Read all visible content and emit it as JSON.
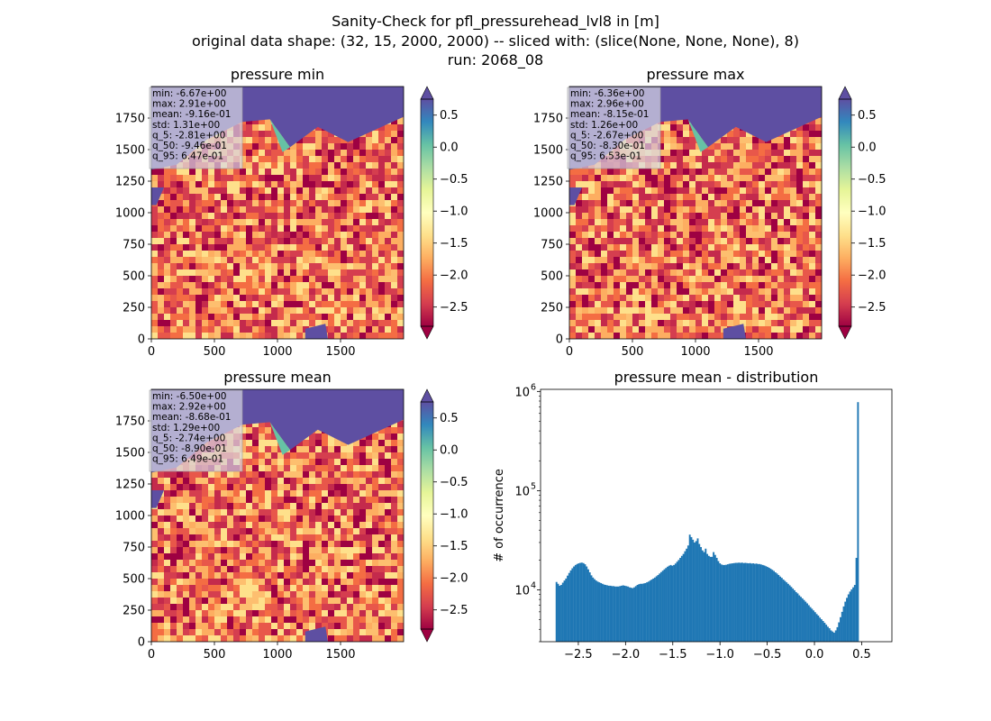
{
  "figure": {
    "title_lines": [
      "Sanity-Check for pfl_pressurehead_lvl8 in [m]",
      "original data shape: (32, 15, 2000, 2000) -- sliced with: (slice(None, None, None), 8)",
      "run: 2068_08"
    ]
  },
  "colormap": {
    "name": "Spectral",
    "stops": [
      "#9e0142",
      "#d53e4f",
      "#f46d43",
      "#fdae61",
      "#fee08b",
      "#ffffbf",
      "#e6f598",
      "#abdda4",
      "#66c2a5",
      "#3288bd",
      "#5e4fa2"
    ]
  },
  "chart_data": [
    {
      "type": "heatmap",
      "title": "pressure min",
      "xlim": [
        0,
        2000
      ],
      "ylim": [
        0,
        2000
      ],
      "xticks": [
        0,
        500,
        1000,
        1500
      ],
      "yticks": [
        0,
        250,
        500,
        750,
        1000,
        1250,
        1500,
        1750
      ],
      "colorbar": {
        "vmin": -2.8,
        "vmax": 0.75,
        "ticks": [
          0.5,
          0.0,
          -0.5,
          -1.0,
          -1.5,
          -2.0,
          -2.5
        ],
        "extend": "both"
      },
      "stats": [
        "min: -6.67e+00",
        "max: 2.91e+00",
        "mean: -9.16e-01",
        "std: 1.31e+00",
        "q_5: -2.81e+00",
        "q_50: -9.46e-01",
        "q_95: 6.47e-01"
      ]
    },
    {
      "type": "heatmap",
      "title": "pressure max",
      "xlim": [
        0,
        2000
      ],
      "ylim": [
        0,
        2000
      ],
      "xticks": [
        0,
        500,
        1000,
        1500
      ],
      "yticks": [
        0,
        250,
        500,
        750,
        1000,
        1250,
        1500,
        1750
      ],
      "colorbar": {
        "vmin": -2.8,
        "vmax": 0.75,
        "ticks": [
          0.5,
          0.0,
          -0.5,
          -1.0,
          -1.5,
          -2.0,
          -2.5
        ],
        "extend": "both"
      },
      "stats": [
        "min: -6.36e+00",
        "max: 2.96e+00",
        "mean: -8.15e-01",
        "std: 1.26e+00",
        "q_5: -2.67e+00",
        "q_50: -8.30e-01",
        "q_95: 6.53e-01"
      ]
    },
    {
      "type": "heatmap",
      "title": "pressure mean",
      "xlim": [
        0,
        2000
      ],
      "ylim": [
        0,
        2000
      ],
      "xticks": [
        0,
        500,
        1000,
        1500
      ],
      "yticks": [
        0,
        250,
        500,
        750,
        1000,
        1250,
        1500,
        1750
      ],
      "colorbar": {
        "vmin": -2.8,
        "vmax": 0.75,
        "ticks": [
          0.5,
          0.0,
          -0.5,
          -1.0,
          -1.5,
          -2.0,
          -2.5
        ],
        "extend": "both"
      },
      "stats": [
        "min: -6.50e+00",
        "max: 2.92e+00",
        "mean: -8.68e-01",
        "std: 1.29e+00",
        "q_5: -2.74e+00",
        "q_50: -8.90e-01",
        "q_95: 6.49e-01"
      ]
    },
    {
      "type": "bar",
      "title": "pressure mean - distribution",
      "ylabel": "# of occurrence",
      "xlabel": "",
      "yscale": "log",
      "xlim": [
        -2.9,
        0.82
      ],
      "ylim": [
        3000,
        1050000
      ],
      "xticks": [
        -2.5,
        -2.0,
        -1.5,
        -1.0,
        -0.5,
        0.0,
        0.5
      ],
      "xtick_labels": [
        "−2.5",
        "−2.0",
        "−1.5",
        "−1.0",
        "−0.5",
        "0.0",
        "0.5"
      ],
      "yticks": [
        10000,
        100000,
        1000000
      ],
      "ytick_labels": [
        [
          "10",
          "4"
        ],
        [
          "10",
          "5"
        ],
        [
          "10",
          "6"
        ]
      ],
      "bar_color": "#1f77b4",
      "bin_edge_start": -2.74,
      "bin_width": 0.0168,
      "values": [
        12000,
        11500,
        11000,
        11200,
        11800,
        12400,
        13000,
        13900,
        14800,
        15700,
        16500,
        17200,
        17800,
        18200,
        18500,
        18700,
        18800,
        18600,
        18100,
        17200,
        16100,
        15000,
        14000,
        13300,
        12800,
        12400,
        12100,
        11900,
        11700,
        11500,
        11300,
        11200,
        11100,
        11000,
        11000,
        10900,
        10900,
        10800,
        10800,
        10800,
        10900,
        11000,
        11100,
        11000,
        10900,
        10800,
        10600,
        10500,
        10400,
        10600,
        10900,
        11200,
        11400,
        11500,
        11500,
        11600,
        11700,
        11900,
        12100,
        12400,
        12700,
        13000,
        13300,
        13700,
        14100,
        14600,
        15100,
        15600,
        16100,
        16600,
        17100,
        17500,
        17800,
        17500,
        17800,
        18400,
        19200,
        20000,
        21000,
        22000,
        23000,
        24500,
        26000,
        28000,
        36000,
        34000,
        32000,
        30000,
        31000,
        33000,
        29000,
        27000,
        25000,
        24000,
        26000,
        23000,
        22000,
        21500,
        21500,
        24000,
        22500,
        21000,
        19500,
        18500,
        18000,
        17800,
        17800,
        17900,
        18100,
        18300,
        18400,
        18500,
        18600,
        18700,
        18700,
        18800,
        18700,
        18800,
        18600,
        18700,
        18600,
        18500,
        18600,
        18400,
        18500,
        18300,
        18400,
        18200,
        18200,
        18000,
        17800,
        17600,
        17300,
        17000,
        16700,
        16300,
        15900,
        15500,
        15000,
        14600,
        14100,
        13600,
        13200,
        12700,
        12300,
        11900,
        11500,
        11100,
        10700,
        10300,
        9900,
        9500,
        9200,
        8800,
        8500,
        8200,
        7900,
        7600,
        7300,
        7000,
        6700,
        6450,
        6200,
        5950,
        5700,
        5500,
        5250,
        5050,
        4850,
        4650,
        4450,
        4250,
        4100,
        3900,
        3800,
        3700,
        3900,
        4200,
        4700,
        5300,
        6000,
        6800,
        7600,
        8300,
        9000,
        9600,
        10100,
        10600,
        11200,
        21000,
        780000
      ]
    }
  ]
}
